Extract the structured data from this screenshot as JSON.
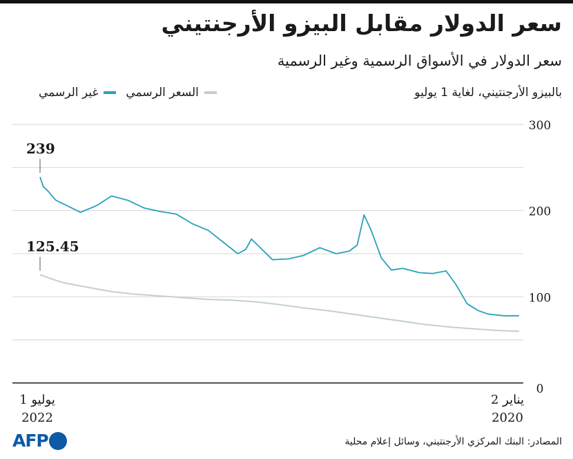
{
  "header": {
    "title": "سعر الدولار مقابل البيزو الأرجنتيني",
    "subtitle": "سعر الدولار في الأسواق الرسمية وغير الرسمية",
    "unit_label": "بالبيزو الأرجنتيني، لغاية 1 يوليو"
  },
  "colors": {
    "official": "#c3cfd0",
    "informal": "#2aa0ba",
    "grid": "#d6d6d6",
    "axis": "#1a1a1a"
  },
  "x_axis": {
    "start_line1": "2 يناير",
    "start_line2": "2020",
    "end_line1": "1 يوليو",
    "end_line2": "2022"
  },
  "footer": {
    "source": "المصادر: البنك المركزي الأرجنتيني، وسائل إعلام محلية",
    "logo_text": "AFP"
  },
  "chart_data": {
    "type": "line",
    "title": "سعر الدولار مقابل البيزو الأرجنتيني",
    "subtitle": "سعر الدولار في الأسواق الرسمية وغير الرسمية",
    "ylabel": "بالبيزو الأرجنتيني، لغاية 1 يوليو",
    "x_direction": "right-to-left",
    "x_range": [
      "2020-01-02",
      "2022-07-01"
    ],
    "ylim": [
      0,
      300
    ],
    "yticks": [
      0,
      100,
      200,
      300
    ],
    "grid": true,
    "legend_placement": "top-left",
    "series": [
      {
        "name": "السعر الرسمي",
        "color_key": "official",
        "points": [
          [
            "2020-01-02",
            60
          ],
          [
            "2020-02-15",
            61
          ],
          [
            "2020-04-01",
            63
          ],
          [
            "2020-05-15",
            65
          ],
          [
            "2020-07-01",
            68
          ],
          [
            "2020-08-15",
            72
          ],
          [
            "2020-10-01",
            76
          ],
          [
            "2020-11-15",
            80
          ],
          [
            "2021-01-01",
            84
          ],
          [
            "2021-02-15",
            87
          ],
          [
            "2021-04-01",
            91
          ],
          [
            "2021-05-15",
            94
          ],
          [
            "2021-07-01",
            96
          ],
          [
            "2021-08-15",
            97
          ],
          [
            "2021-10-01",
            99
          ],
          [
            "2021-11-15",
            101
          ],
          [
            "2022-01-01",
            103
          ],
          [
            "2022-02-15",
            106
          ],
          [
            "2022-04-01",
            111
          ],
          [
            "2022-05-15",
            116
          ],
          [
            "2022-06-01",
            119
          ],
          [
            "2022-07-01",
            125.45
          ]
        ]
      },
      {
        "name": "غير الرسمي",
        "color_key": "informal",
        "points": [
          [
            "2020-01-02",
            78
          ],
          [
            "2020-02-01",
            78
          ],
          [
            "2020-03-01",
            80
          ],
          [
            "2020-03-20",
            84
          ],
          [
            "2020-04-10",
            92
          ],
          [
            "2020-05-01",
            114
          ],
          [
            "2020-05-20",
            130
          ],
          [
            "2020-06-15",
            127
          ],
          [
            "2020-07-10",
            128
          ],
          [
            "2020-08-10",
            133
          ],
          [
            "2020-09-01",
            131
          ],
          [
            "2020-09-20",
            145
          ],
          [
            "2020-10-10",
            178
          ],
          [
            "2020-10-23",
            195
          ],
          [
            "2020-11-05",
            160
          ],
          [
            "2020-11-20",
            153
          ],
          [
            "2020-12-15",
            150
          ],
          [
            "2021-01-15",
            157
          ],
          [
            "2021-02-15",
            148
          ],
          [
            "2021-03-15",
            144
          ],
          [
            "2021-04-15",
            143
          ],
          [
            "2021-05-10",
            158
          ],
          [
            "2021-05-25",
            167
          ],
          [
            "2021-06-05",
            155
          ],
          [
            "2021-06-20",
            150
          ],
          [
            "2021-07-15",
            162
          ],
          [
            "2021-08-15",
            177
          ],
          [
            "2021-09-15",
            185
          ],
          [
            "2021-10-15",
            196
          ],
          [
            "2021-11-15",
            199
          ],
          [
            "2021-12-15",
            203
          ],
          [
            "2022-01-15",
            212
          ],
          [
            "2022-02-15",
            217
          ],
          [
            "2022-03-15",
            206
          ],
          [
            "2022-04-15",
            198
          ],
          [
            "2022-05-15",
            207
          ],
          [
            "2022-06-01",
            212
          ],
          [
            "2022-06-15",
            222
          ],
          [
            "2022-06-25",
            228
          ],
          [
            "2022-07-01",
            239
          ]
        ]
      }
    ],
    "annotations": [
      {
        "label": "239",
        "series": "غير الرسمي",
        "date": "2022-07-01",
        "value": 239
      },
      {
        "label": "125.45",
        "series": "السعر الرسمي",
        "date": "2022-07-01",
        "value": 125.45
      }
    ]
  }
}
